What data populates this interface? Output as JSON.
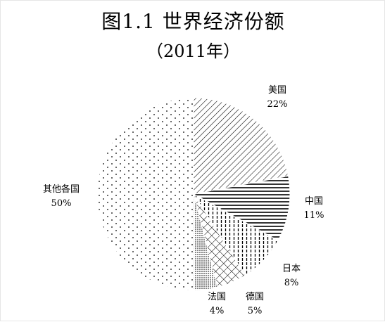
{
  "chart_data": {
    "type": "pie",
    "title": "图1.1 世界经济份额",
    "subtitle": "（2011年）",
    "slices": [
      {
        "label": "美国",
        "value": 22,
        "value_label": "22%",
        "pattern": "diagonal"
      },
      {
        "label": "中国",
        "value": 11,
        "value_label": "11%",
        "pattern": "horizontal"
      },
      {
        "label": "日本",
        "value": 8,
        "value_label": "8%",
        "pattern": "vertical"
      },
      {
        "label": "德国",
        "value": 5,
        "value_label": "5%",
        "pattern": "crosshatch"
      },
      {
        "label": "法国",
        "value": 4,
        "value_label": "4%",
        "pattern": "dense-dots"
      },
      {
        "label": "其他各国",
        "value": 50,
        "value_label": "50%",
        "pattern": "sparse-dots"
      }
    ],
    "start": "12 o'clock",
    "direction": "clockwise",
    "colors": {
      "ink": "#000000",
      "background": "#ffffff"
    }
  }
}
